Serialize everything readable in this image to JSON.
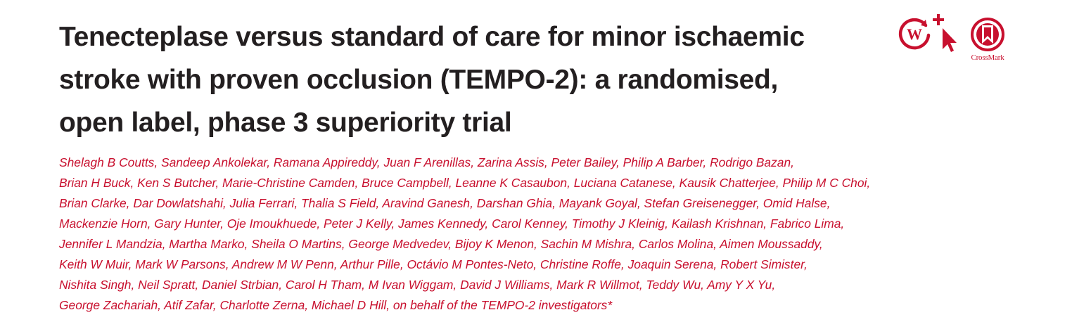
{
  "title_lines": [
    "Tenecteplase versus standard of care for minor ischaemic",
    "stroke with proven occlusion (TEMPO-2): a randomised,",
    "open label, phase 3 superiority trial"
  ],
  "author_lines": [
    "Shelagh B Coutts, Sandeep Ankolekar, Ramana Appireddy, Juan F Arenillas, Zarina Assis, Peter Bailey, Philip A Barber, Rodrigo Bazan,",
    "Brian H Buck, Ken S Butcher, Marie-Christine Camden, Bruce Campbell, Leanne K Casaubon, Luciana Catanese, Kausik Chatterjee, Philip M C Choi,",
    "Brian Clarke, Dar Dowlatshahi, Julia Ferrari, Thalia S Field, Aravind Ganesh, Darshan Ghia, Mayank Goyal, Stefan Greisenegger, Omid Halse,",
    "Mackenzie Horn, Gary Hunter, Oje Imoukhuede, Peter J Kelly, James Kennedy, Carol Kenney, Timothy J Kleinig, Kailash Krishnan, Fabrico Lima,",
    "Jennifer L Mandzia, Martha Marko, Sheila O Martins, George Medvedev, Bijoy K Menon, Sachin M Mishra, Carlos Molina, Aimen Moussaddy,",
    "Keith W Muir, Mark W Parsons, Andrew M W Penn, Arthur Pille, Octávio M Pontes-Neto, Christine Roffe, Joaquin Serena, Robert Simister,",
    "Nishita Singh, Neil Spratt, Daniel Strbian, Carol H Tham, M Ivan Wiggam, David J Williams, Mark R Willmot, Teddy Wu, Amy Y X Yu,",
    "George Zachariah, Atif Zafar, Charlotte Zerna, Michael D Hill, on behalf of the TEMPO-2 investigators*"
  ],
  "icons": {
    "crossmark_label": "CrossMark",
    "brand_color": "#c8102e",
    "title_color": "#231f20"
  }
}
